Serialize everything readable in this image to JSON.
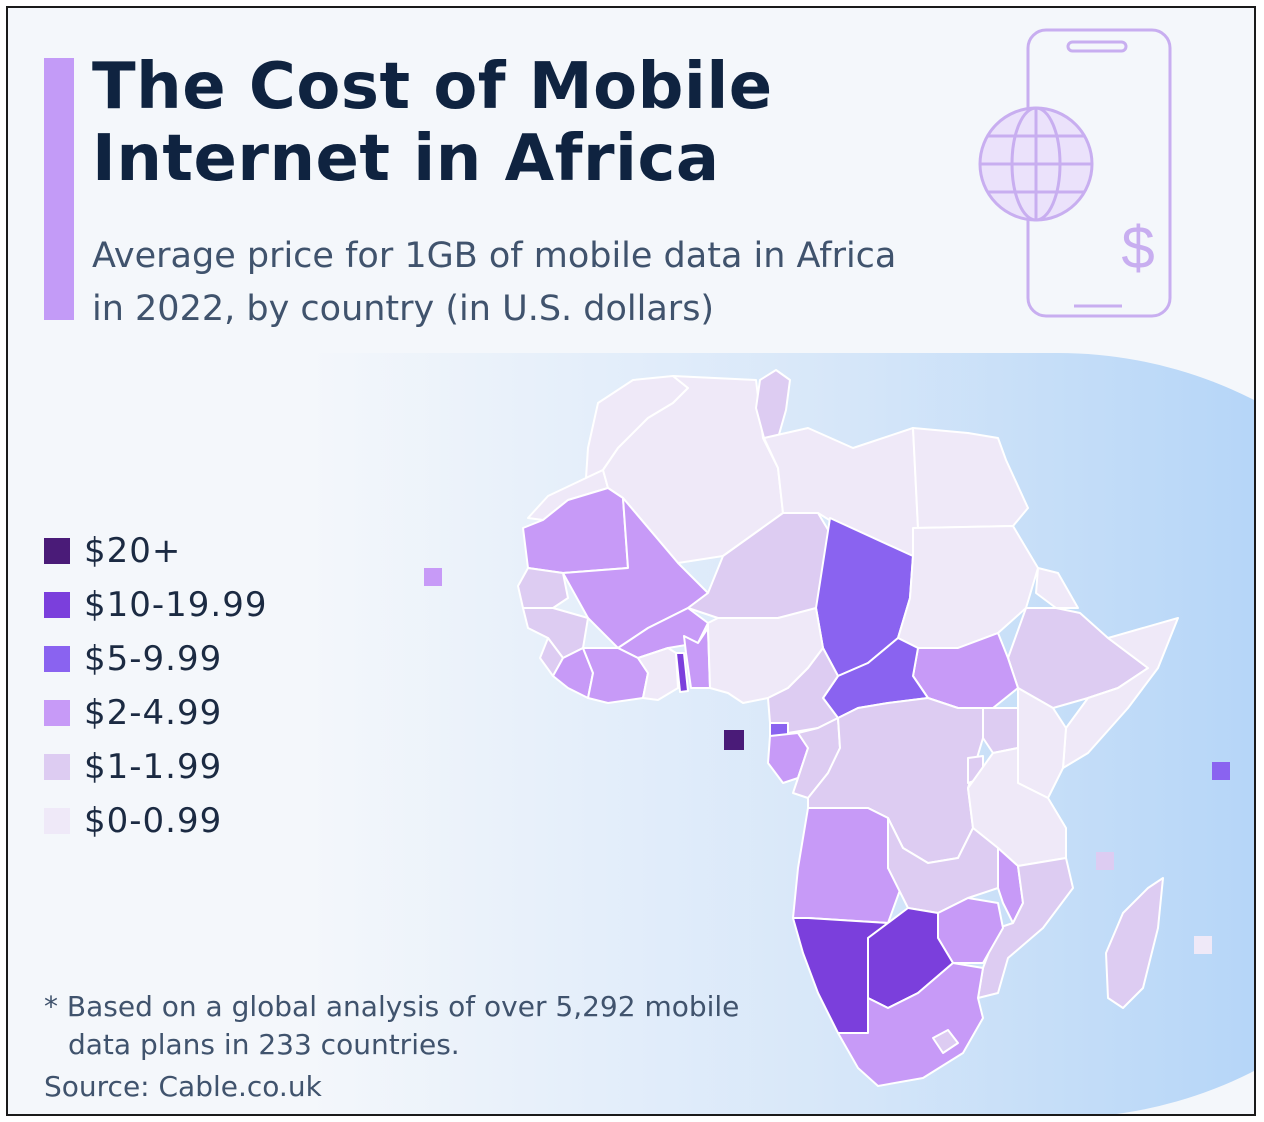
{
  "title_lines": [
    "The Cost of Mobile",
    "Internet in Africa"
  ],
  "subtitle_lines": [
    "Average price for 1GB of mobile data in Africa",
    "in 2022, by country (in U.S. dollars)"
  ],
  "legend": [
    {
      "label": "$20+",
      "color": "#4a1b78"
    },
    {
      "label": "$10-19.99",
      "color": "#7b3fdc"
    },
    {
      "label": "$5-9.99",
      "color": "#8a63f0"
    },
    {
      "label": "$2-4.99",
      "color": "#c79af7"
    },
    {
      "label": "$1-1.99",
      "color": "#ddccf2"
    },
    {
      "label": "$0-0.99",
      "color": "#efe9f8"
    }
  ],
  "footnote_lines": [
    "* Based on a global analysis of over 5,292 mobile",
    "data plans in 233 countries."
  ],
  "source": "Source: Cable.co.uk",
  "colors": {
    "title": "#0f2340",
    "accent_bar": "#c39bf7",
    "icon_stroke": "#c8aef0",
    "background": "#f4f7fb",
    "ocean_gradient_end": "#a5cdf7"
  },
  "icons": [
    "smartphone-icon",
    "globe-icon",
    "dollar-icon"
  ]
}
